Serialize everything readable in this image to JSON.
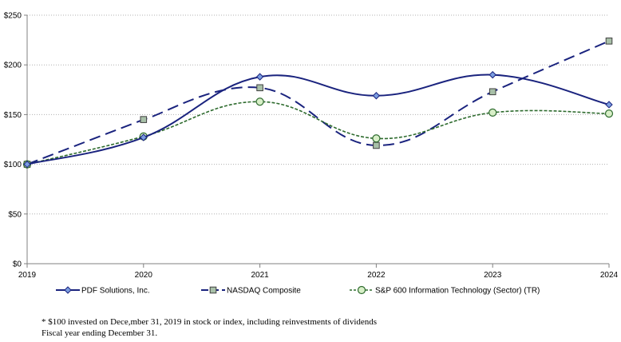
{
  "chart_data": {
    "type": "line",
    "title": "",
    "xlabel": "",
    "ylabel": "",
    "x": [
      "2019",
      "2020",
      "2021",
      "2022",
      "2023",
      "2024"
    ],
    "ylim": [
      0,
      250
    ],
    "yticks": [
      0,
      50,
      100,
      150,
      200,
      250
    ],
    "ytick_labels": [
      "$0",
      "$50",
      "$100",
      "$150",
      "$200",
      "$250"
    ],
    "grid": "horizontal dotted",
    "legend_position": "bottom",
    "series": [
      {
        "name": "PDF Solutions, Inc.",
        "values": [
          100,
          127,
          188,
          169,
          190,
          160
        ],
        "color": "#1a237e",
        "marker": "diamond",
        "marker_fill": "#7b9de0",
        "style": "solid"
      },
      {
        "name": "NASDAQ Composite",
        "values": [
          100,
          145,
          177,
          119,
          173,
          224
        ],
        "color": "#1a237e",
        "marker": "square",
        "marker_fill": "#a8c0a8",
        "style": "dashed"
      },
      {
        "name": "S&P 600 Information Technology (Sector) (TR)",
        "values": [
          100,
          128,
          163,
          126,
          152,
          151
        ],
        "color": "#2e6b2e",
        "marker": "circle",
        "marker_fill": "#d8efc8",
        "style": "dotted"
      }
    ]
  },
  "footnotes": {
    "line1": "* $100 invested on Dece,mber 31, 2019 in stock or index, including reinvestments of dividends",
    "line2": "Fiscal year ending December 31."
  }
}
